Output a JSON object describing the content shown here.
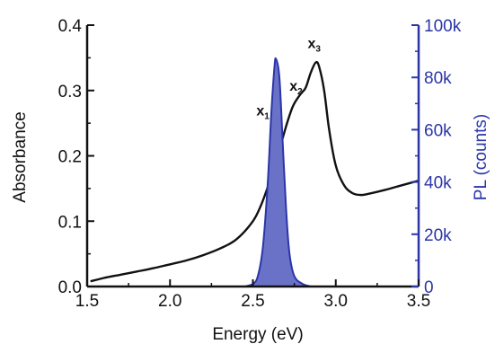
{
  "chart_data": {
    "type": "line",
    "title": "",
    "xlabel": "Energy (eV)",
    "ylabel_left": "Absorbance",
    "ylabel_right": "PL (counts)",
    "xlim": [
      1.5,
      3.5
    ],
    "ylim_left": [
      0,
      0.4
    ],
    "ylim_right": [
      0,
      100000
    ],
    "x_ticks": [
      "1.5",
      "2.0",
      "2.5",
      "3.0",
      "3.5"
    ],
    "y_left_ticks": [
      "0.0",
      "0.1",
      "0.2",
      "0.3",
      "0.4"
    ],
    "y_right_ticks": [
      "0",
      "20k",
      "40k",
      "60k",
      "80k",
      "100k"
    ],
    "grid": false,
    "legend": "none",
    "series": [
      {
        "name": "",
        "axis": "left",
        "color": "#111111",
        "x": [
          1.52,
          1.6,
          1.7,
          1.8,
          1.9,
          2.0,
          2.1,
          2.2,
          2.3,
          2.4,
          2.5,
          2.55,
          2.6,
          2.65,
          2.7,
          2.74,
          2.78,
          2.8,
          2.82,
          2.85,
          2.88,
          2.9,
          2.93,
          2.96,
          3.0,
          3.05,
          3.1,
          3.15,
          3.2,
          3.3,
          3.4,
          3.5
        ],
        "values": [
          0.008,
          0.013,
          0.018,
          0.023,
          0.028,
          0.034,
          0.04,
          0.048,
          0.058,
          0.072,
          0.1,
          0.125,
          0.16,
          0.2,
          0.245,
          0.275,
          0.292,
          0.298,
          0.305,
          0.328,
          0.343,
          0.336,
          0.3,
          0.24,
          0.185,
          0.155,
          0.143,
          0.14,
          0.142,
          0.148,
          0.155,
          0.162
        ]
      },
      {
        "name": "",
        "axis": "right",
        "color": "#2b35a8",
        "fill": "#6a72c8",
        "x": [
          2.45,
          2.5,
          2.53,
          2.56,
          2.59,
          2.61,
          2.63,
          2.64,
          2.66,
          2.68,
          2.7,
          2.72,
          2.75,
          2.8,
          2.85
        ],
        "values": [
          0,
          1000,
          4000,
          15000,
          40000,
          65000,
          84000,
          87000,
          80000,
          55000,
          30000,
          13000,
          4000,
          1000,
          0
        ]
      }
    ],
    "annotations": [
      {
        "text": "x",
        "sub": "1",
        "x": 2.56,
        "y": 0.262
      },
      {
        "text": "x",
        "sub": "2",
        "x": 2.76,
        "y": 0.3
      },
      {
        "text": "x",
        "sub": "3",
        "x": 2.87,
        "y": 0.365
      }
    ]
  }
}
